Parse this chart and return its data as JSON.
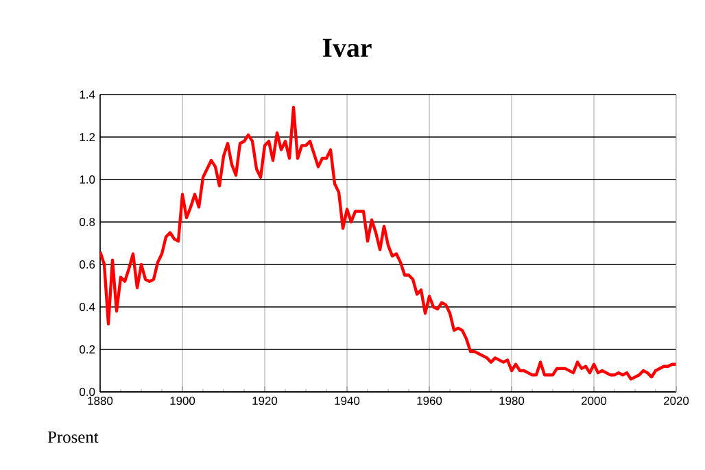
{
  "chart_data": {
    "type": "line",
    "title": "Ivar",
    "ylabel": "Prosent",
    "x": [
      1880,
      1881,
      1882,
      1883,
      1884,
      1885,
      1886,
      1887,
      1888,
      1889,
      1890,
      1891,
      1892,
      1893,
      1894,
      1895,
      1896,
      1897,
      1898,
      1899,
      1900,
      1901,
      1902,
      1903,
      1904,
      1905,
      1906,
      1907,
      1908,
      1909,
      1910,
      1911,
      1912,
      1913,
      1914,
      1915,
      1916,
      1917,
      1918,
      1919,
      1920,
      1921,
      1922,
      1923,
      1924,
      1925,
      1926,
      1927,
      1928,
      1929,
      1930,
      1931,
      1932,
      1933,
      1934,
      1935,
      1936,
      1937,
      1938,
      1939,
      1940,
      1941,
      1942,
      1943,
      1944,
      1945,
      1946,
      1947,
      1948,
      1949,
      1950,
      1951,
      1952,
      1953,
      1954,
      1955,
      1956,
      1957,
      1958,
      1959,
      1960,
      1961,
      1962,
      1963,
      1964,
      1965,
      1966,
      1967,
      1968,
      1969,
      1970,
      1971,
      1972,
      1973,
      1974,
      1975,
      1976,
      1977,
      1978,
      1979,
      1980,
      1981,
      1982,
      1983,
      1984,
      1985,
      1986,
      1987,
      1988,
      1989,
      1990,
      1991,
      1992,
      1993,
      1994,
      1995,
      1996,
      1997,
      1998,
      1999,
      2000,
      2001,
      2002,
      2003,
      2004,
      2005,
      2006,
      2007,
      2008,
      2009,
      2010,
      2011,
      2012,
      2013,
      2014,
      2015,
      2016,
      2017,
      2018,
      2019,
      2020
    ],
    "series": [
      {
        "color": "#ff0000",
        "values": [
          0.66,
          0.6,
          0.32,
          0.62,
          0.38,
          0.54,
          0.52,
          0.58,
          0.65,
          0.49,
          0.6,
          0.53,
          0.52,
          0.53,
          0.61,
          0.65,
          0.73,
          0.75,
          0.72,
          0.71,
          0.93,
          0.82,
          0.87,
          0.93,
          0.87,
          1.01,
          1.05,
          1.09,
          1.06,
          0.97,
          1.11,
          1.17,
          1.07,
          1.02,
          1.17,
          1.18,
          1.21,
          1.18,
          1.05,
          1.01,
          1.16,
          1.18,
          1.09,
          1.22,
          1.14,
          1.18,
          1.1,
          1.34,
          1.1,
          1.16,
          1.16,
          1.18,
          1.12,
          1.06,
          1.1,
          1.1,
          1.14,
          0.98,
          0.94,
          0.77,
          0.86,
          0.8,
          0.85,
          0.85,
          0.85,
          0.71,
          0.81,
          0.75,
          0.67,
          0.78,
          0.69,
          0.64,
          0.65,
          0.61,
          0.55,
          0.55,
          0.53,
          0.46,
          0.48,
          0.37,
          0.45,
          0.4,
          0.39,
          0.42,
          0.41,
          0.37,
          0.29,
          0.3,
          0.29,
          0.25,
          0.19,
          0.19,
          0.18,
          0.17,
          0.16,
          0.14,
          0.16,
          0.15,
          0.14,
          0.15,
          0.1,
          0.13,
          0.1,
          0.1,
          0.09,
          0.08,
          0.08,
          0.14,
          0.08,
          0.08,
          0.08,
          0.11,
          0.11,
          0.11,
          0.1,
          0.09,
          0.14,
          0.11,
          0.12,
          0.09,
          0.13,
          0.09,
          0.1,
          0.09,
          0.08,
          0.08,
          0.09,
          0.08,
          0.09,
          0.06,
          0.07,
          0.08,
          0.1,
          0.09,
          0.07,
          0.1,
          0.11,
          0.12,
          0.12,
          0.13,
          0.13
        ]
      }
    ],
    "xlim": [
      1880,
      2020
    ],
    "xticks": [
      1880,
      1900,
      1920,
      1940,
      1960,
      1980,
      2000,
      2020
    ],
    "ylim": [
      0,
      1.4
    ],
    "yticks": [
      {
        "value": 0,
        "label": "0.0"
      },
      0.2,
      0.4,
      0.6,
      0.8,
      {
        "value": 1,
        "label": "1.0"
      },
      1.2,
      1.4
    ],
    "grid": true,
    "marker": "none",
    "line_style": "solid"
  }
}
